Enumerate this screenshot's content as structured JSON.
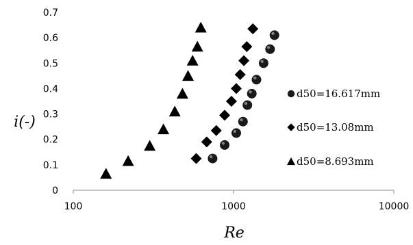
{
  "chart_data": {
    "type": "scatter",
    "xlabel": "Re",
    "ylabel": "i(-)",
    "xscale": "log",
    "xlim": [
      100,
      10000
    ],
    "ylim": [
      0,
      0.7
    ],
    "xticks": [
      100,
      1000,
      10000
    ],
    "xtick_labels": [
      "100",
      "1000",
      "10000"
    ],
    "yticks": [
      0,
      0.1,
      0.2,
      0.3,
      0.4,
      0.5,
      0.6,
      0.7
    ],
    "ytick_labels": [
      "0",
      "0.1",
      "0.2",
      "0.3",
      "0.4",
      "0.5",
      "0.6",
      "0.7"
    ],
    "grid": false,
    "legend_position": "right",
    "series": [
      {
        "name": "d50=16.617mm",
        "marker": "circle",
        "color": "#1a1a1a",
        "x": [
          740,
          880,
          1040,
          1145,
          1220,
          1300,
          1390,
          1540,
          1690,
          1800
        ],
        "y": [
          0.125,
          0.178,
          0.225,
          0.27,
          0.335,
          0.38,
          0.435,
          0.5,
          0.555,
          0.61
        ]
      },
      {
        "name": "d50=13.08mm",
        "marker": "diamond",
        "color": "#000000",
        "x": [
          585,
          680,
          780,
          880,
          970,
          1040,
          1100,
          1160,
          1210,
          1320
        ],
        "y": [
          0.125,
          0.19,
          0.235,
          0.295,
          0.35,
          0.4,
          0.455,
          0.51,
          0.565,
          0.635
        ]
      },
      {
        "name": "d50=8.693mm",
        "marker": "triangle",
        "color": "#000000",
        "x": [
          160,
          220,
          300,
          365,
          430,
          480,
          520,
          555,
          595,
          625
        ],
        "y": [
          0.065,
          0.115,
          0.175,
          0.24,
          0.31,
          0.38,
          0.45,
          0.51,
          0.565,
          0.64
        ]
      }
    ]
  }
}
